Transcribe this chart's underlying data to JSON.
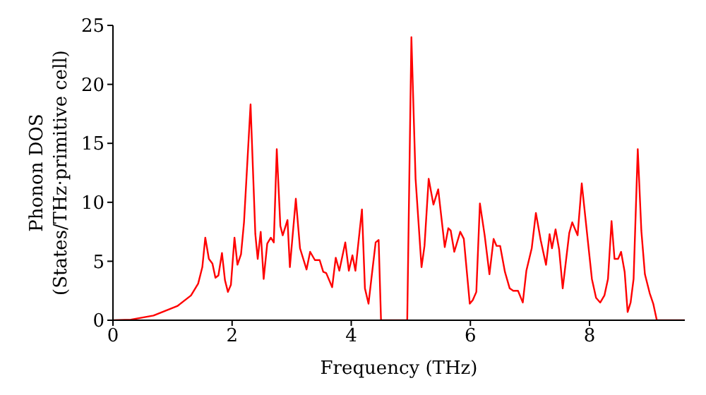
{
  "chart_data": {
    "type": "line",
    "xlabel": "Frequency (THz)",
    "ylabel": "Phonon DOS\n(States/THz·primitive cell)",
    "xlim": [
      0,
      9.6
    ],
    "xticks": [
      0,
      2,
      4,
      6,
      8
    ],
    "ylim": [
      0,
      25
    ],
    "yticks": [
      0,
      5,
      10,
      15,
      20,
      25
    ],
    "grid": false,
    "legend": false,
    "marker": "none",
    "line_style": "solid",
    "series": [
      {
        "color": "#ff0000",
        "x": [
          0,
          0.3,
          0.68,
          1.08,
          1.31,
          1.43,
          1.5,
          1.55,
          1.61,
          1.67,
          1.72,
          1.77,
          1.83,
          1.88,
          1.93,
          1.98,
          2.04,
          2.09,
          2.15,
          2.2,
          2.31,
          2.39,
          2.43,
          2.48,
          2.53,
          2.59,
          2.65,
          2.7,
          2.75,
          2.81,
          2.85,
          2.93,
          2.97,
          3.07,
          3.14,
          3.25,
          3.31,
          3.39,
          3.47,
          3.53,
          3.58,
          3.68,
          3.74,
          3.8,
          3.9,
          3.96,
          4.02,
          4.07,
          4.18,
          4.23,
          4.29,
          4.34,
          4.41,
          4.46,
          4.5,
          4.94,
          5.01,
          5.08,
          5.18,
          5.23,
          5.3,
          5.38,
          5.46,
          5.57,
          5.63,
          5.67,
          5.73,
          5.83,
          5.89,
          5.99,
          6.04,
          6.1,
          6.16,
          6.24,
          6.32,
          6.39,
          6.44,
          6.5,
          6.58,
          6.66,
          6.72,
          6.8,
          6.88,
          6.94,
          7.03,
          7.1,
          7.18,
          7.27,
          7.33,
          7.37,
          7.43,
          7.49,
          7.55,
          7.66,
          7.71,
          7.8,
          7.87,
          7.96,
          8.04,
          8.11,
          8.18,
          8.25,
          8.31,
          8.37,
          8.42,
          8.48,
          8.53,
          8.59,
          8.64,
          8.69,
          8.74,
          8.81,
          8.87,
          8.93,
          9.01,
          9.07,
          9.13,
          9.6
        ],
        "values": [
          0,
          0.05,
          0.4,
          1.2,
          2.1,
          3.1,
          4.5,
          7.0,
          5.2,
          4.8,
          3.6,
          3.8,
          5.7,
          3.4,
          2.4,
          3.0,
          7.0,
          4.7,
          5.6,
          8.3,
          18.3,
          7.3,
          5.2,
          7.5,
          3.5,
          6.5,
          7.0,
          6.6,
          14.5,
          8.0,
          7.2,
          8.5,
          4.5,
          10.3,
          6.1,
          4.3,
          5.8,
          5.1,
          5.1,
          4.1,
          4.0,
          2.8,
          5.3,
          4.2,
          6.6,
          4.2,
          5.5,
          4.2,
          9.4,
          2.7,
          1.4,
          3.6,
          6.6,
          6.8,
          0,
          0,
          24.0,
          12.0,
          4.5,
          6.3,
          12.0,
          9.8,
          11.1,
          6.2,
          7.8,
          7.6,
          5.8,
          7.5,
          6.9,
          1.4,
          1.7,
          2.4,
          9.9,
          7.2,
          3.9,
          6.9,
          6.3,
          6.3,
          4.1,
          2.7,
          2.5,
          2.5,
          1.5,
          4.2,
          6.1,
          9.1,
          6.8,
          4.7,
          7.3,
          6.1,
          7.7,
          6.0,
          2.7,
          7.4,
          8.3,
          7.2,
          11.6,
          7.3,
          3.5,
          1.9,
          1.5,
          2.1,
          3.5,
          8.4,
          5.2,
          5.2,
          5.8,
          4.1,
          0.7,
          1.5,
          3.5,
          14.5,
          7.6,
          3.9,
          2.3,
          1.4,
          0,
          0
        ]
      }
    ]
  }
}
